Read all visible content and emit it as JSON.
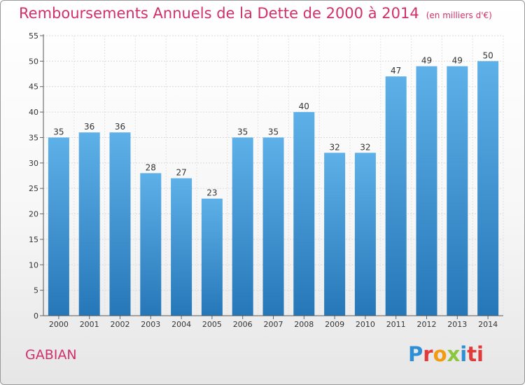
{
  "header": {
    "title": "Remboursements Annuels de la Dette de 2000 à 2014",
    "subtitle": "(en milliers d'€)"
  },
  "footer": {
    "commune": "GABIAN",
    "logo": [
      "P",
      "r",
      "o",
      "x",
      "i",
      "ti"
    ]
  },
  "colors": {
    "accent": "#d0306a",
    "bar_top": "#5eb0e8",
    "bar_bottom": "#2677b8"
  },
  "chart_data": {
    "type": "bar",
    "title": "Remboursements Annuels de la Dette de 2000 à 2014",
    "subtitle": "(en milliers d'€)",
    "xlabel": "",
    "ylabel": "",
    "categories": [
      "2000",
      "2001",
      "2002",
      "2003",
      "2004",
      "2005",
      "2006",
      "2007",
      "2008",
      "2009",
      "2010",
      "2011",
      "2012",
      "2013",
      "2014"
    ],
    "values": [
      35,
      36,
      36,
      28,
      27,
      23,
      35,
      35,
      40,
      32,
      32,
      47,
      49,
      49,
      50
    ],
    "ylim": [
      0,
      55
    ],
    "yticks": [
      0,
      5,
      10,
      15,
      20,
      25,
      30,
      35,
      40,
      45,
      50,
      55
    ],
    "grid": true,
    "legend": "none"
  }
}
